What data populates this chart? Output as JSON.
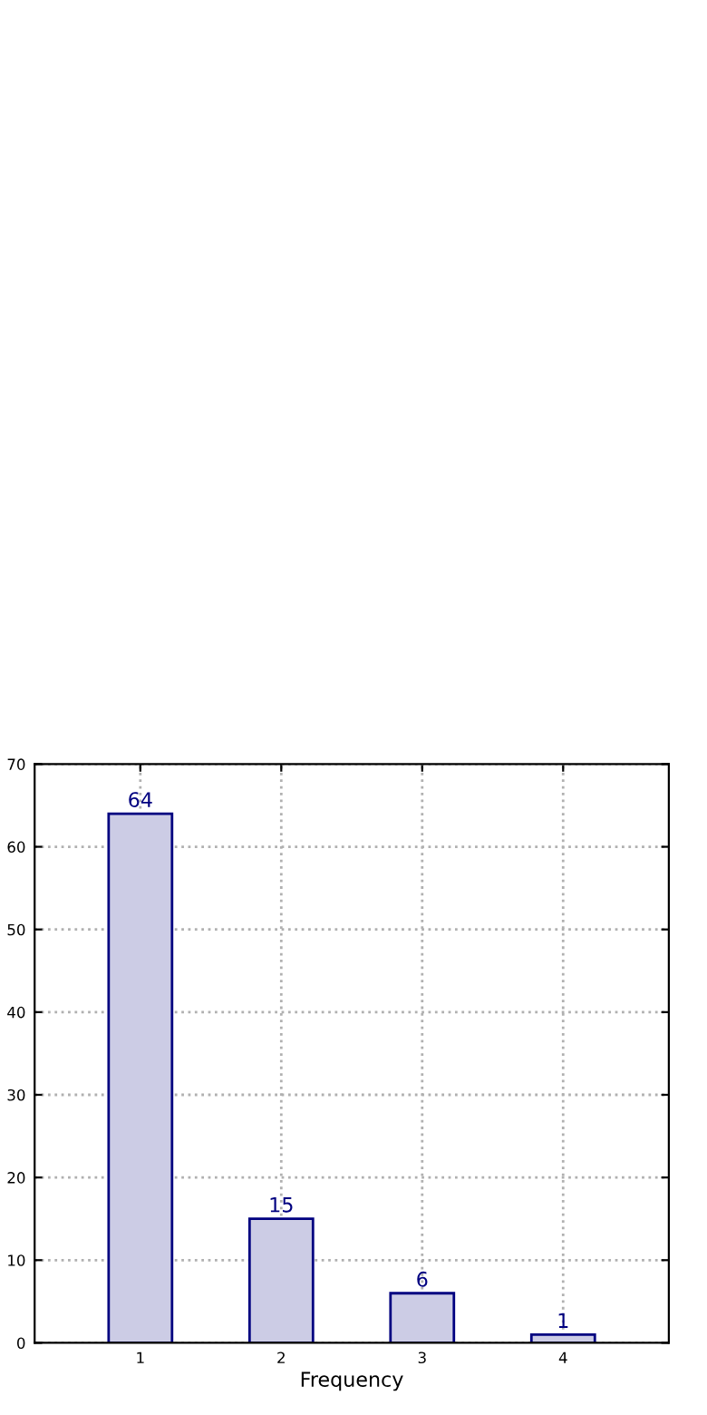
{
  "chart_data": {
    "type": "bar",
    "xlabel": "Frequency",
    "categories": [
      "1",
      "2",
      "3",
      "4"
    ],
    "values": [
      64,
      15,
      6,
      1
    ],
    "color": "#ccccE5",
    "ylim": [
      0,
      70
    ],
    "yticks": [
      0,
      10,
      20,
      30,
      40,
      50,
      60,
      70
    ],
    "grid": true,
    "data_labels": true,
    "line_style": "dotted"
  }
}
